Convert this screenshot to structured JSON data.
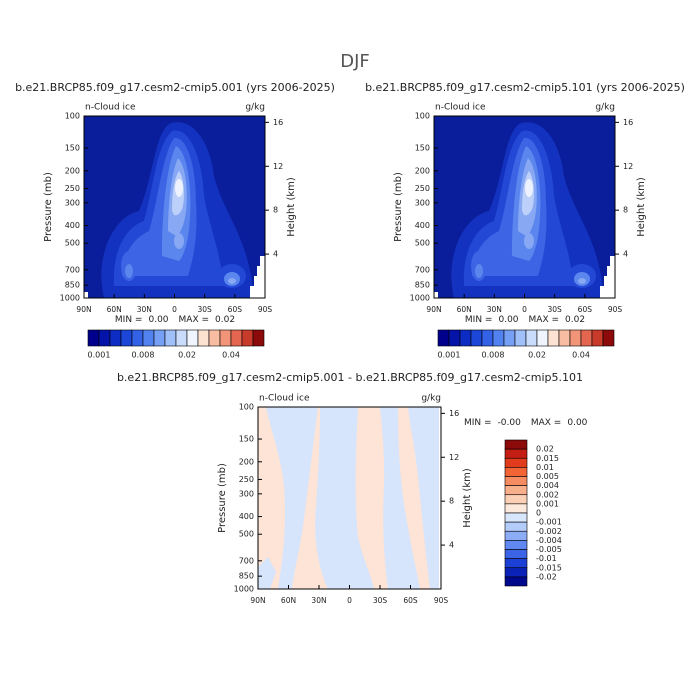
{
  "title": "DJF",
  "panels": [
    {
      "title": "b.e21.BRCP85.f09_g17.cesm2-cmip5.001 (yrs 2006-2025)",
      "left_label": "n-Cloud ice",
      "right_label": "g/kg",
      "y_label": "Pressure (mb)",
      "y2_label": "Height (km)",
      "yticks": [
        100,
        150,
        200,
        250,
        300,
        400,
        500,
        700,
        850,
        1000
      ],
      "y2ticks": [
        16,
        12,
        8,
        4
      ],
      "xticks": [
        "90N",
        "60N",
        "30N",
        "0",
        "30S",
        "60S",
        "90S"
      ],
      "min_label": "MIN =",
      "min": "0.00",
      "max_label": "MAX =",
      "max": "0.02"
    },
    {
      "title": "b.e21.BRCP85.f09_g17.cesm2-cmip5.101 (yrs 2006-2025)",
      "left_label": "n-Cloud ice",
      "right_label": "g/kg",
      "y_label": "Pressure (mb)",
      "y2_label": "Height (km)",
      "yticks": [
        100,
        150,
        200,
        250,
        300,
        400,
        500,
        700,
        850,
        1000
      ],
      "y2ticks": [
        16,
        12,
        8,
        4
      ],
      "xticks": [
        "90N",
        "60N",
        "30N",
        "0",
        "30S",
        "60S",
        "90S"
      ],
      "min_label": "MIN =",
      "min": "0.00",
      "max_label": "MAX =",
      "max": "0.02"
    },
    {
      "title": "b.e21.BRCP85.f09_g17.cesm2-cmip5.001 - b.e21.BRCP85.f09_g17.cesm2-cmip5.101",
      "left_label": "n-Cloud ice",
      "right_label": "g/kg",
      "y_label": "Pressure (mb)",
      "y2_label": "Height (km)",
      "yticks": [
        100,
        150,
        200,
        250,
        300,
        400,
        500,
        700,
        850,
        1000
      ],
      "y2ticks": [
        16,
        12,
        8,
        4
      ],
      "xticks": [
        "90N",
        "60N",
        "30N",
        "0",
        "30S",
        "60S",
        "90S"
      ],
      "min_label": "MIN =",
      "min": "-0.00",
      "max_label": "MAX =",
      "max": "0.00"
    }
  ],
  "colorbar_top": {
    "colors": [
      "#00008c",
      "#0414a8",
      "#0c2cc4",
      "#1c46d8",
      "#3462e6",
      "#5282f0",
      "#76a0f6",
      "#a0c0fa",
      "#cadcfc",
      "#f0f4ff",
      "#fde2d2",
      "#f8bca2",
      "#f29478",
      "#e46650",
      "#c83a2a",
      "#8c0a0a"
    ],
    "labels": [
      "0.001",
      "0.008",
      "0.02",
      "0.04"
    ]
  },
  "colorbar_diff": {
    "colors": [
      "#8c0a0a",
      "#c41e14",
      "#e23a1c",
      "#f26436",
      "#f68c62",
      "#f8b08c",
      "#fbd0b6",
      "#fde8dc",
      "#d8e6fc",
      "#b4ccfa",
      "#8cacf6",
      "#6088f0",
      "#3c64e6",
      "#1c40d6",
      "#0a22b8",
      "#00088c"
    ],
    "labels": [
      "0.02",
      "0.015",
      "0.01",
      "0.005",
      "0.004",
      "0.002",
      "0.001",
      "0",
      "-0.001",
      "-0.002",
      "-0.004",
      "-0.005",
      "-0.01",
      "-0.015",
      "-0.02"
    ]
  }
}
